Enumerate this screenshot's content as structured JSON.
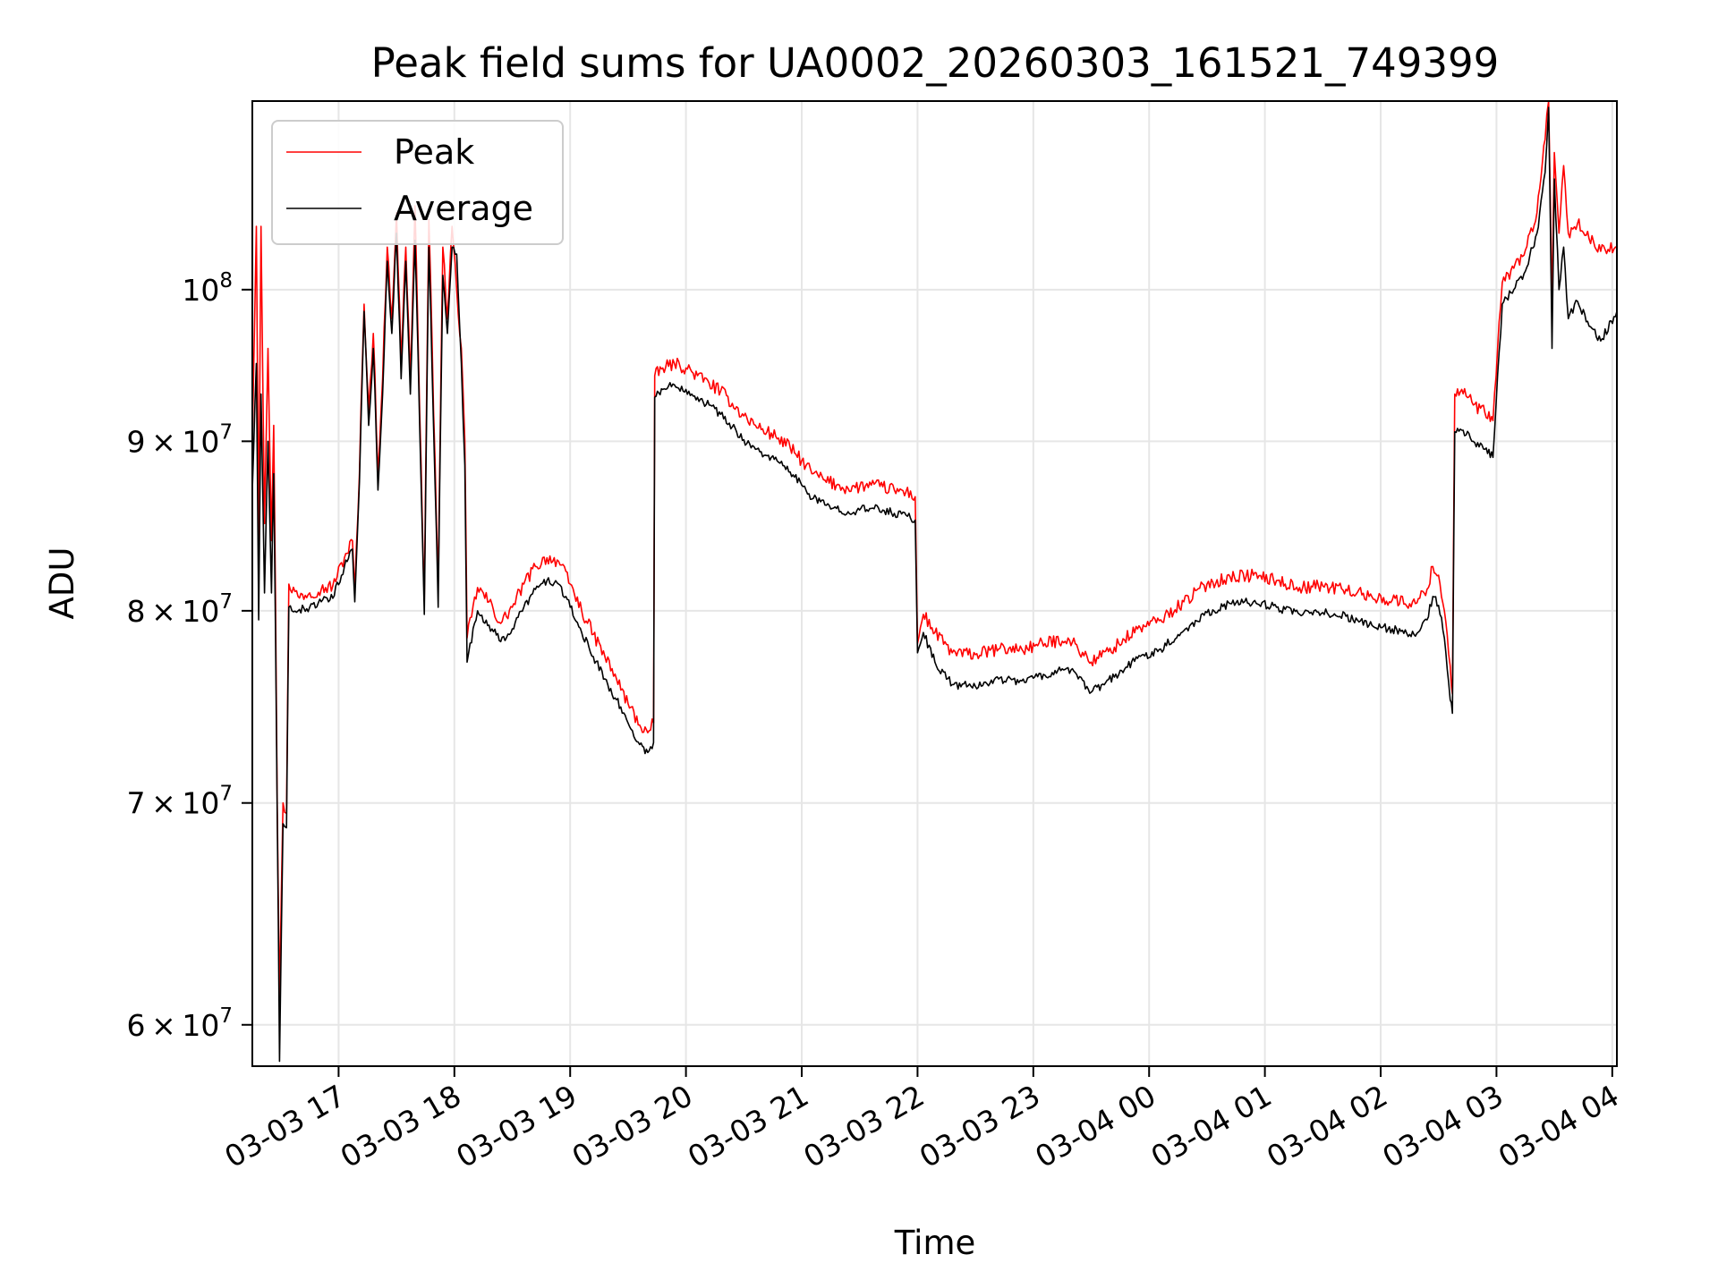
{
  "chart_data": {
    "type": "line",
    "title": "Peak field sums for UA0002_20260303_161521_749399",
    "xlabel": "Time",
    "ylabel": "ADU",
    "yscale": "log",
    "ylim": [
      58300000,
      114000000
    ],
    "xlim_hours": [
      16.255,
      28.04
    ],
    "x_unit": "hours since 2026-03-03 00:00",
    "grid": true,
    "legend_position": "top-left",
    "x_ticks": [
      {
        "value": 17,
        "label": "03-03 17"
      },
      {
        "value": 18,
        "label": "03-03 18"
      },
      {
        "value": 19,
        "label": "03-03 19"
      },
      {
        "value": 20,
        "label": "03-03 20"
      },
      {
        "value": 21,
        "label": "03-03 21"
      },
      {
        "value": 22,
        "label": "03-03 22"
      },
      {
        "value": 23,
        "label": "03-03 23"
      },
      {
        "value": 24,
        "label": "03-04 00"
      },
      {
        "value": 25,
        "label": "03-04 01"
      },
      {
        "value": 26,
        "label": "03-04 02"
      },
      {
        "value": 27,
        "label": "03-04 03"
      },
      {
        "value": 28,
        "label": "03-04 04"
      }
    ],
    "y_ticks": [
      {
        "value": 60000000,
        "mantissa": "6",
        "base": "10",
        "exp": "7"
      },
      {
        "value": 70000000,
        "mantissa": "7",
        "base": "10",
        "exp": "7"
      },
      {
        "value": 80000000,
        "mantissa": "8",
        "base": "10",
        "exp": "7"
      },
      {
        "value": 90000000,
        "mantissa": "9",
        "base": "10",
        "exp": "7"
      },
      {
        "value": 100000000,
        "mantissa": "",
        "base": "10",
        "exp": "8"
      }
    ],
    "series": [
      {
        "name": "Peak",
        "color": "#ff0000",
        "points": [
          [
            16.255,
            90000000
          ],
          [
            16.29,
            104500000
          ],
          [
            16.31,
            84000000
          ],
          [
            16.33,
            104500000
          ],
          [
            16.36,
            85000000
          ],
          [
            16.39,
            96000000
          ],
          [
            16.42,
            84000000
          ],
          [
            16.44,
            91000000
          ],
          [
            16.47,
            70000000
          ],
          [
            16.49,
            61000000
          ],
          [
            16.52,
            70000000
          ],
          [
            16.55,
            69500000
          ],
          [
            16.57,
            81500000
          ],
          [
            16.65,
            80800000
          ],
          [
            16.75,
            81000000
          ],
          [
            16.85,
            81200000
          ],
          [
            16.95,
            81400000
          ],
          [
            17.05,
            83000000
          ],
          [
            17.12,
            84000000
          ],
          [
            17.14,
            81000000
          ],
          [
            17.18,
            88000000
          ],
          [
            17.22,
            99000000
          ],
          [
            17.26,
            92000000
          ],
          [
            17.3,
            97000000
          ],
          [
            17.34,
            88000000
          ],
          [
            17.38,
            94000000
          ],
          [
            17.42,
            103000000
          ],
          [
            17.46,
            98000000
          ],
          [
            17.5,
            105500000
          ],
          [
            17.54,
            95000000
          ],
          [
            17.58,
            103000000
          ],
          [
            17.62,
            94000000
          ],
          [
            17.66,
            106000000
          ],
          [
            17.7,
            92000000
          ],
          [
            17.74,
            80500000
          ],
          [
            17.78,
            105000000
          ],
          [
            17.82,
            92000000
          ],
          [
            17.86,
            81500000
          ],
          [
            17.9,
            103000000
          ],
          [
            17.94,
            98000000
          ],
          [
            17.98,
            104500000
          ],
          [
            18.02,
            100000000
          ],
          [
            18.06,
            96000000
          ],
          [
            18.09,
            90000000
          ],
          [
            18.11,
            78500000
          ],
          [
            18.2,
            81300000
          ],
          [
            18.3,
            80500000
          ],
          [
            18.4,
            79300000
          ],
          [
            18.5,
            80200000
          ],
          [
            18.6,
            81500000
          ],
          [
            18.7,
            82500000
          ],
          [
            18.8,
            83000000
          ],
          [
            18.9,
            82800000
          ],
          [
            19.0,
            81500000
          ],
          [
            19.1,
            80000000
          ],
          [
            19.2,
            78700000
          ],
          [
            19.3,
            77500000
          ],
          [
            19.4,
            76300000
          ],
          [
            19.5,
            75000000
          ],
          [
            19.6,
            73900000
          ],
          [
            19.67,
            73500000
          ],
          [
            19.72,
            74000000
          ],
          [
            19.73,
            94200000
          ],
          [
            19.8,
            94700000
          ],
          [
            19.9,
            95000000
          ],
          [
            20.0,
            94700000
          ],
          [
            20.1,
            94200000
          ],
          [
            20.2,
            93700000
          ],
          [
            20.3,
            93200000
          ],
          [
            20.4,
            92400000
          ],
          [
            20.5,
            91600000
          ],
          [
            20.6,
            91000000
          ],
          [
            20.7,
            90600000
          ],
          [
            20.8,
            90200000
          ],
          [
            20.9,
            89600000
          ],
          [
            21.0,
            88800000
          ],
          [
            21.1,
            88000000
          ],
          [
            21.2,
            87600000
          ],
          [
            21.3,
            87300000
          ],
          [
            21.4,
            87100000
          ],
          [
            21.5,
            87200000
          ],
          [
            21.6,
            87300000
          ],
          [
            21.7,
            87200000
          ],
          [
            21.8,
            87000000
          ],
          [
            21.9,
            86900000
          ],
          [
            21.98,
            86600000
          ],
          [
            22.0,
            78200000
          ],
          [
            22.05,
            79800000
          ],
          [
            22.15,
            78800000
          ],
          [
            22.3,
            77700000
          ],
          [
            22.5,
            77600000
          ],
          [
            22.7,
            77900000
          ],
          [
            22.9,
            77900000
          ],
          [
            23.1,
            78200000
          ],
          [
            23.3,
            78500000
          ],
          [
            23.5,
            77200000
          ],
          [
            23.7,
            78000000
          ],
          [
            23.9,
            79000000
          ],
          [
            24.1,
            79500000
          ],
          [
            24.3,
            80500000
          ],
          [
            24.5,
            81500000
          ],
          [
            24.7,
            81900000
          ],
          [
            24.9,
            82000000
          ],
          [
            25.1,
            81700000
          ],
          [
            25.3,
            81300000
          ],
          [
            25.5,
            81400000
          ],
          [
            25.7,
            81200000
          ],
          [
            25.9,
            80800000
          ],
          [
            26.1,
            80600000
          ],
          [
            26.3,
            80400000
          ],
          [
            26.4,
            81200000
          ],
          [
            26.45,
            82500000
          ],
          [
            26.5,
            82000000
          ],
          [
            26.55,
            80000000
          ],
          [
            26.6,
            77000000
          ],
          [
            26.62,
            75500000
          ],
          [
            26.64,
            93000000
          ],
          [
            26.7,
            93300000
          ],
          [
            26.8,
            92300000
          ],
          [
            26.9,
            91800000
          ],
          [
            26.97,
            91300000
          ],
          [
            27.05,
            100500000
          ],
          [
            27.15,
            101500000
          ],
          [
            27.25,
            102800000
          ],
          [
            27.35,
            105500000
          ],
          [
            27.42,
            111000000
          ],
          [
            27.45,
            114000000
          ],
          [
            27.48,
            98500000
          ],
          [
            27.5,
            110000000
          ],
          [
            27.54,
            104000000
          ],
          [
            27.58,
            109000000
          ],
          [
            27.62,
            104000000
          ],
          [
            27.7,
            104700000
          ],
          [
            27.8,
            103600000
          ],
          [
            27.9,
            102700000
          ],
          [
            28.04,
            103000000
          ]
        ]
      },
      {
        "name": "Average",
        "color": "#000000",
        "points": [
          [
            16.255,
            87000000
          ],
          [
            16.29,
            95000000
          ],
          [
            16.31,
            79500000
          ],
          [
            16.33,
            93000000
          ],
          [
            16.36,
            81000000
          ],
          [
            16.39,
            90000000
          ],
          [
            16.42,
            81000000
          ],
          [
            16.44,
            88000000
          ],
          [
            16.47,
            69500000
          ],
          [
            16.49,
            58500000
          ],
          [
            16.52,
            69000000
          ],
          [
            16.55,
            68800000
          ],
          [
            16.57,
            80200000
          ],
          [
            16.65,
            80000000
          ],
          [
            16.75,
            80200000
          ],
          [
            16.85,
            80500000
          ],
          [
            16.95,
            80700000
          ],
          [
            17.05,
            82500000
          ],
          [
            17.12,
            83500000
          ],
          [
            17.14,
            80500000
          ],
          [
            17.18,
            87500000
          ],
          [
            17.22,
            98500000
          ],
          [
            17.26,
            91000000
          ],
          [
            17.3,
            96000000
          ],
          [
            17.34,
            87000000
          ],
          [
            17.38,
            93000000
          ],
          [
            17.42,
            102000000
          ],
          [
            17.46,
            97000000
          ],
          [
            17.5,
            104000000
          ],
          [
            17.54,
            94000000
          ],
          [
            17.58,
            102000000
          ],
          [
            17.62,
            93000000
          ],
          [
            17.66,
            103500000
          ],
          [
            17.7,
            91000000
          ],
          [
            17.74,
            79800000
          ],
          [
            17.78,
            103000000
          ],
          [
            17.82,
            91000000
          ],
          [
            17.86,
            80200000
          ],
          [
            17.9,
            101000000
          ],
          [
            17.94,
            97000000
          ],
          [
            17.98,
            103000000
          ],
          [
            18.02,
            102500000
          ],
          [
            18.06,
            95000000
          ],
          [
            18.09,
            88500000
          ],
          [
            18.11,
            77200000
          ],
          [
            18.2,
            80000000
          ],
          [
            18.3,
            79200000
          ],
          [
            18.4,
            78300000
          ],
          [
            18.5,
            79000000
          ],
          [
            18.6,
            80200000
          ],
          [
            18.7,
            81200000
          ],
          [
            18.8,
            81700000
          ],
          [
            18.9,
            81500000
          ],
          [
            19.0,
            80200000
          ],
          [
            19.1,
            78800000
          ],
          [
            19.2,
            77500000
          ],
          [
            19.3,
            76300000
          ],
          [
            19.4,
            75200000
          ],
          [
            19.5,
            74000000
          ],
          [
            19.6,
            72900000
          ],
          [
            19.67,
            72500000
          ],
          [
            19.72,
            73000000
          ],
          [
            19.73,
            92800000
          ],
          [
            19.8,
            93300000
          ],
          [
            19.9,
            93600000
          ],
          [
            20.0,
            93300000
          ],
          [
            20.1,
            92800000
          ],
          [
            20.2,
            92300000
          ],
          [
            20.3,
            91700000
          ],
          [
            20.4,
            90900000
          ],
          [
            20.5,
            90100000
          ],
          [
            20.6,
            89500000
          ],
          [
            20.7,
            89100000
          ],
          [
            20.8,
            88700000
          ],
          [
            20.9,
            88100000
          ],
          [
            21.0,
            87300000
          ],
          [
            21.1,
            86500000
          ],
          [
            21.2,
            86100000
          ],
          [
            21.3,
            85900000
          ],
          [
            21.4,
            85700000
          ],
          [
            21.5,
            85800000
          ],
          [
            21.6,
            85900000
          ],
          [
            21.7,
            85800000
          ],
          [
            21.8,
            85600000
          ],
          [
            21.9,
            85500000
          ],
          [
            21.98,
            85200000
          ],
          [
            22.0,
            77700000
          ],
          [
            22.05,
            78800000
          ],
          [
            22.15,
            77200000
          ],
          [
            22.3,
            76000000
          ],
          [
            22.5,
            75900000
          ],
          [
            22.7,
            76300000
          ],
          [
            22.9,
            76200000
          ],
          [
            23.1,
            76500000
          ],
          [
            23.3,
            76900000
          ],
          [
            23.5,
            75600000
          ],
          [
            23.7,
            76400000
          ],
          [
            23.9,
            77400000
          ],
          [
            24.1,
            77900000
          ],
          [
            24.3,
            78900000
          ],
          [
            24.5,
            79900000
          ],
          [
            24.7,
            80400000
          ],
          [
            24.9,
            80500000
          ],
          [
            25.1,
            80200000
          ],
          [
            25.3,
            79800000
          ],
          [
            25.5,
            79900000
          ],
          [
            25.7,
            79700000
          ],
          [
            25.9,
            79200000
          ],
          [
            26.1,
            79000000
          ],
          [
            26.3,
            78600000
          ],
          [
            26.4,
            79500000
          ],
          [
            26.45,
            80800000
          ],
          [
            26.5,
            80300000
          ],
          [
            26.55,
            78500000
          ],
          [
            26.6,
            75200000
          ],
          [
            26.62,
            74500000
          ],
          [
            26.64,
            90600000
          ],
          [
            26.7,
            90700000
          ],
          [
            26.8,
            90000000
          ],
          [
            26.9,
            89500000
          ],
          [
            26.97,
            89000000
          ],
          [
            27.05,
            99000000
          ],
          [
            27.15,
            100000000
          ],
          [
            27.25,
            101300000
          ],
          [
            27.35,
            104000000
          ],
          [
            27.42,
            108500000
          ],
          [
            27.45,
            113500000
          ],
          [
            27.48,
            96000000
          ],
          [
            27.5,
            108000000
          ],
          [
            27.54,
            100000000
          ],
          [
            27.58,
            103000000
          ],
          [
            27.62,
            98000000
          ],
          [
            27.7,
            99200000
          ],
          [
            27.8,
            97500000
          ],
          [
            27.9,
            96500000
          ],
          [
            28.04,
            98500000
          ]
        ]
      }
    ]
  }
}
